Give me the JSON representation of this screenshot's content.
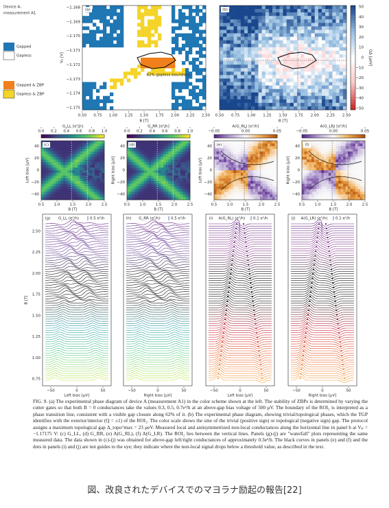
{
  "panel_a": {
    "label": "(a)",
    "device": "Device A,",
    "measurement": "measurement A1",
    "annotation": "62% gapless boundary",
    "x_label": "B [T]",
    "y_label": "Vₚ [V]",
    "xticks": [
      "0.50",
      "0.75",
      "1.00",
      "1.25",
      "1.50",
      "1.75",
      "2.00",
      "2.25",
      "2.50"
    ],
    "yticks": [
      "−1.168",
      "−1.169",
      "−1.170",
      "−1.171",
      "−1.172",
      "−1.173",
      "−1.174",
      "−1.175"
    ]
  },
  "legend": {
    "items": [
      "Gapped",
      "Gapless",
      "Gapped & ZBP",
      "Gapless & ZBP"
    ]
  },
  "panel_b": {
    "label": "(b)",
    "x_label": "B [T]",
    "xticks": [
      "0.50",
      "0.75",
      "1.00",
      "1.25",
      "1.50",
      "1.75",
      "2.00",
      "2.25",
      "2.50"
    ],
    "colorbar_label": "QΔ [μeV]",
    "colorbar_ticks": [
      "50",
      "40",
      "30",
      "20",
      "10",
      "0",
      "−10",
      "−20",
      "−30",
      "−40",
      "−50"
    ]
  },
  "row2": [
    {
      "label": "(c)",
      "scale_label": "G_LL [e²/h]",
      "scale_ticks": [
        "0.0",
        "0.2",
        "0.4",
        "0.6",
        "0.8",
        "1.0"
      ],
      "y_label": "Left bias [μV]"
    },
    {
      "label": "(d)",
      "scale_label": "G_RR [e²/h]",
      "scale_ticks": [
        "0.0",
        "0.2",
        "0.4",
        "0.6",
        "0.8",
        "1.0"
      ],
      "y_label": "Right bias [μV]"
    },
    {
      "label": "(e)",
      "scale_label": "A(G_RL) [e²/h]",
      "scale_ticks": [
        "−0.05",
        "0.00",
        "0.05"
      ],
      "y_label": "Left bias [μV]"
    },
    {
      "label": "(f)",
      "scale_label": "A(G_LR) [e²/h]",
      "scale_ticks": [
        "−0.05",
        "0.00",
        "0.05"
      ],
      "y_label": "Right bias [μV]"
    }
  ],
  "row2_axes": {
    "yticks": [
      "40",
      "20",
      "0",
      "−20",
      "−40"
    ],
    "xticks": [
      "0.5",
      "1.0",
      "1.5",
      "2.0",
      "2.5"
    ],
    "x_label": "B [T]"
  },
  "row3": [
    {
      "label": "(g)",
      "title": "G_LL (e²/h)",
      "scale": "0.5 e²/h",
      "x_label": "Left bias [μV]"
    },
    {
      "label": "(h)",
      "title": "G_RR (e²/h)",
      "scale": "0.5 e²/h",
      "x_label": "Right bias [μV]"
    },
    {
      "label": "(i)",
      "title": "A(G_RL) (e²/h)",
      "scale": "0.1 e²/h",
      "x_label": "Left bias [μV]"
    },
    {
      "label": "(j)",
      "title": "A(G_LR) (e²/h)",
      "scale": "0.1 e²/h",
      "x_label": "Right bias [μV]"
    }
  ],
  "row3_axes": {
    "y_label": "B [T]",
    "yticks": [
      "2.50",
      "2.25",
      "2.00",
      "1.75",
      "1.50",
      "1.25",
      "1.00",
      "0.75"
    ],
    "xticks": [
      "−50",
      "0",
      "50"
    ]
  },
  "caption": "FIG. 9. (a) The experimental phase diagram of device A (measurement A1) in the color scheme shown at the left. The stability of ZBPs is determined by varying the cutter gates so that both B = 0 conductances take the values 0.3, 0.5, 0.7e²/h at an above-gap bias voltage of 500 μV. The boundary of the ROI₂ is interpreted as a phase transition line, consistent with a visible gap closure along 62% of it. (b) The experimental phase diagram, showing trivial/topological phases, which the TGP identifies with the exterior/interior (Q = ±1) of the ROI₂. The color scale shows the sine of the trivial (positive sign) or topological (negative sign) gap. The protocol assigns a maximum topological gap Δ_topo^max = 23 μeV. Measured local and antisymmetrized non-local conductances along the horizontal line in panel b at Vₚ = −1.17175 V: (c) G_LL, (d) G_RR, (e) A(G_RL), (f) A(G_LR). The ROI₂ lies between the vertical lines. Panels (g)-(j) are \"waterfall\" plots representing the same measured data. The data shown in (c)-(j) was obtained for above-gap left/right conductances of approximately 0.3e²/h. The black curves in panels (e) and (f) and the dots in panels (i) and (j) are not guides to the eye; they indicate where the non-local signal drops below a threshold value, as described in the text.",
  "japanese_caption": "図、改良されたデバイスでのマヨラナ励起の報告[22]"
}
